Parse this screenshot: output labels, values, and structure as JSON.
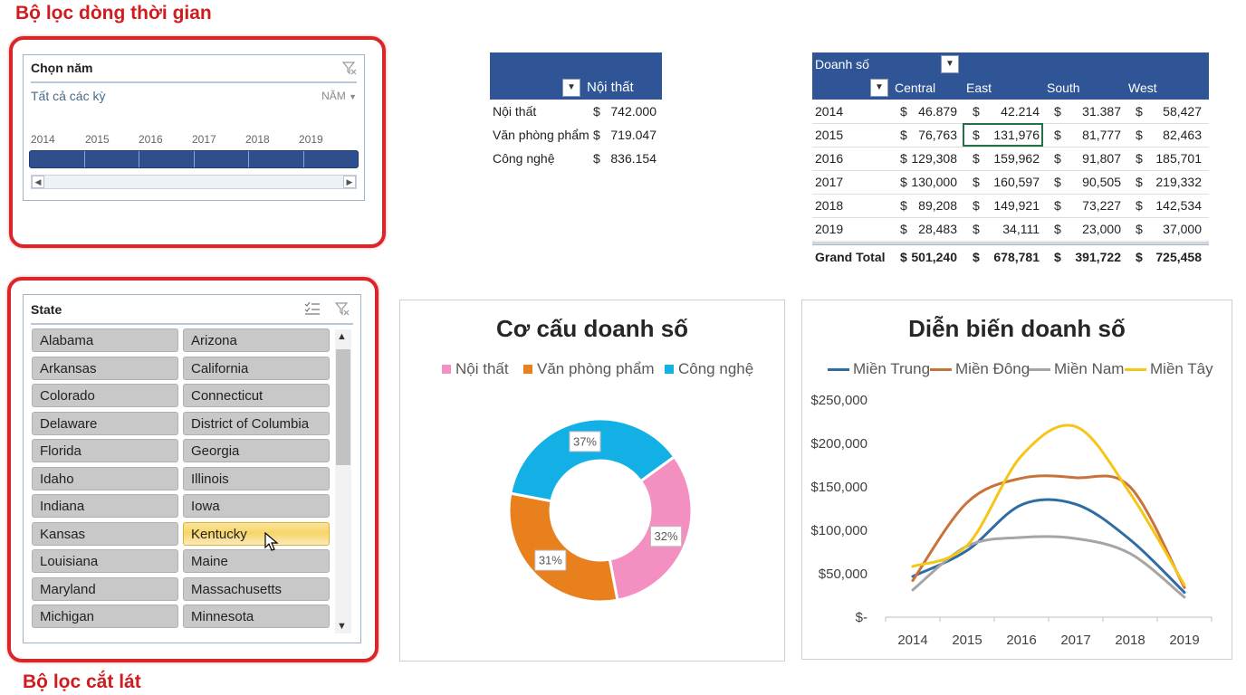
{
  "labels": {
    "timeline_section": "Bộ lọc dòng thời gian",
    "slicer_section": "Bộ lọc cắt lát"
  },
  "timeline": {
    "title": "Chọn năm",
    "selection": "Tất cả các kỳ",
    "level": "NĂM",
    "years": [
      "2014",
      "2015",
      "2016",
      "2017",
      "2018",
      "2019"
    ]
  },
  "pivot_category": {
    "column_header": "Nội thất",
    "rows": [
      {
        "label": "Nội thất",
        "currency": "$",
        "value": "742.000"
      },
      {
        "label": "Văn phòng phẩm",
        "currency": "$",
        "value": "719.047"
      },
      {
        "label": "Công nghệ",
        "currency": "$",
        "value": "836.154"
      }
    ]
  },
  "pivot_region": {
    "values_header": "Doanh số",
    "columns": [
      "Central",
      "East",
      "South",
      "West"
    ],
    "rows": [
      {
        "year": "2014",
        "values": [
          "46.879",
          "42.214",
          "31.387",
          "58,427"
        ]
      },
      {
        "year": "2015",
        "values": [
          "76,763",
          "131,976",
          "81,777",
          "82,463"
        ]
      },
      {
        "year": "2016",
        "values": [
          "129,308",
          "159,962",
          "91,807",
          "185,701"
        ]
      },
      {
        "year": "2017",
        "values": [
          "130,000",
          "160,597",
          "90,505",
          "219,332"
        ]
      },
      {
        "year": "2018",
        "values": [
          "89,208",
          "149,921",
          "73,227",
          "142,534"
        ]
      },
      {
        "year": "2019",
        "values": [
          "28,483",
          "34,111",
          "23,000",
          "37,000"
        ]
      }
    ],
    "grand_total_label": "Grand Total",
    "grand_total": [
      "501,240",
      "678,781",
      "391,722",
      "725,458"
    ],
    "currency": "$"
  },
  "slicer": {
    "title": "State",
    "selected": "Kentucky",
    "items": [
      "Alabama",
      "Arizona",
      "Arkansas",
      "California",
      "Colorado",
      "Connecticut",
      "Delaware",
      "District of Columbia",
      "Florida",
      "Georgia",
      "Idaho",
      "Illinois",
      "Indiana",
      "Iowa",
      "Kansas",
      "Kentucky",
      "Louisiana",
      "Maine",
      "Maryland",
      "Massachusetts",
      "Michigan",
      "Minnesota"
    ]
  },
  "chart_data": [
    {
      "type": "pie",
      "title": "Cơ cấu doanh số",
      "legend_position": "top",
      "categories": [
        "Nội thất",
        "Văn phòng phẩm",
        "Công nghệ"
      ],
      "values": [
        32,
        31,
        37
      ],
      "data_labels": [
        "32%",
        "31%",
        "37%"
      ],
      "colors": [
        "#f48fc1",
        "#e8801e",
        "#12b0e4"
      ]
    },
    {
      "type": "line",
      "title": "Diễn biến doanh số",
      "legend_position": "top",
      "x": [
        "2014",
        "2015",
        "2016",
        "2017",
        "2018",
        "2019"
      ],
      "y_ticks": [
        "$-",
        "$50,000",
        "$100,000",
        "$150,000",
        "$200,000",
        "$250,000"
      ],
      "ylim": [
        0,
        250000
      ],
      "series": [
        {
          "name": "Miền Trung",
          "color": "#2e6ca4",
          "values": [
            46879,
            76763,
            129308,
            130000,
            89208,
            28483
          ]
        },
        {
          "name": "Miền Đông",
          "color": "#c8733a",
          "values": [
            42214,
            131976,
            159962,
            160597,
            149921,
            34111
          ]
        },
        {
          "name": "Miền Nam",
          "color": "#a5a5a5",
          "values": [
            31387,
            81777,
            91807,
            90505,
            73227,
            23000
          ]
        },
        {
          "name": "Miền Tây",
          "color": "#f5c518",
          "values": [
            58427,
            82463,
            185701,
            219332,
            142534,
            37000
          ]
        }
      ]
    }
  ]
}
